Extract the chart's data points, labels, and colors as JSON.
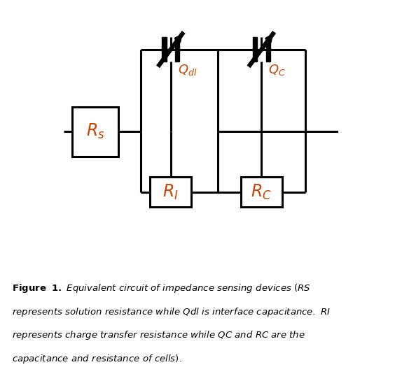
{
  "fig_width": 5.74,
  "fig_height": 5.45,
  "dpi": 100,
  "background": "#ffffff",
  "caption_italic": "  Equivalent circuit of impedance sensing devices (RS represents solution resistance while Qdl is interface capacitance. RI represents charge transfer resistance while QC and RC are the capacitance and resistance of cells).",
  "caption_bold": "Figure  1.",
  "line_color": "#000000",
  "label_color": "#cc4400"
}
